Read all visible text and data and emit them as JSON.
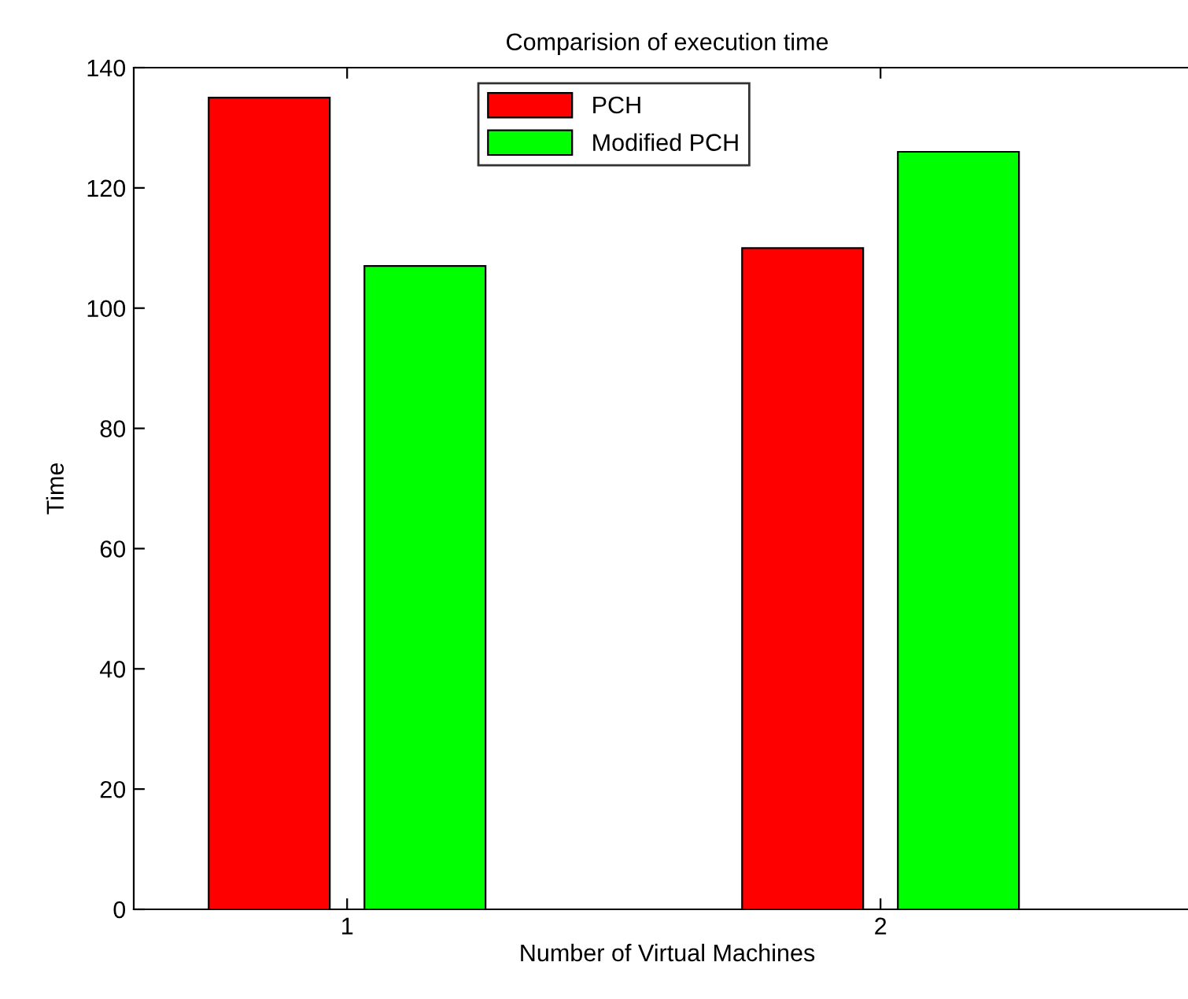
{
  "chart_data": {
    "type": "bar",
    "title": "Comparision of execution time",
    "xlabel": "Number of Virtual Machines",
    "ylabel": "Time",
    "categories": [
      "1",
      "2"
    ],
    "series": [
      {
        "name": "PCH",
        "color": "#ff0000",
        "values": [
          135,
          110
        ]
      },
      {
        "name": "Modified PCH",
        "color": "#00ff00",
        "values": [
          107,
          126
        ]
      }
    ],
    "ylim": [
      0,
      140
    ],
    "yticks": [
      0,
      20,
      40,
      60,
      80,
      100,
      120,
      140
    ],
    "grid": false,
    "legend": "top"
  }
}
